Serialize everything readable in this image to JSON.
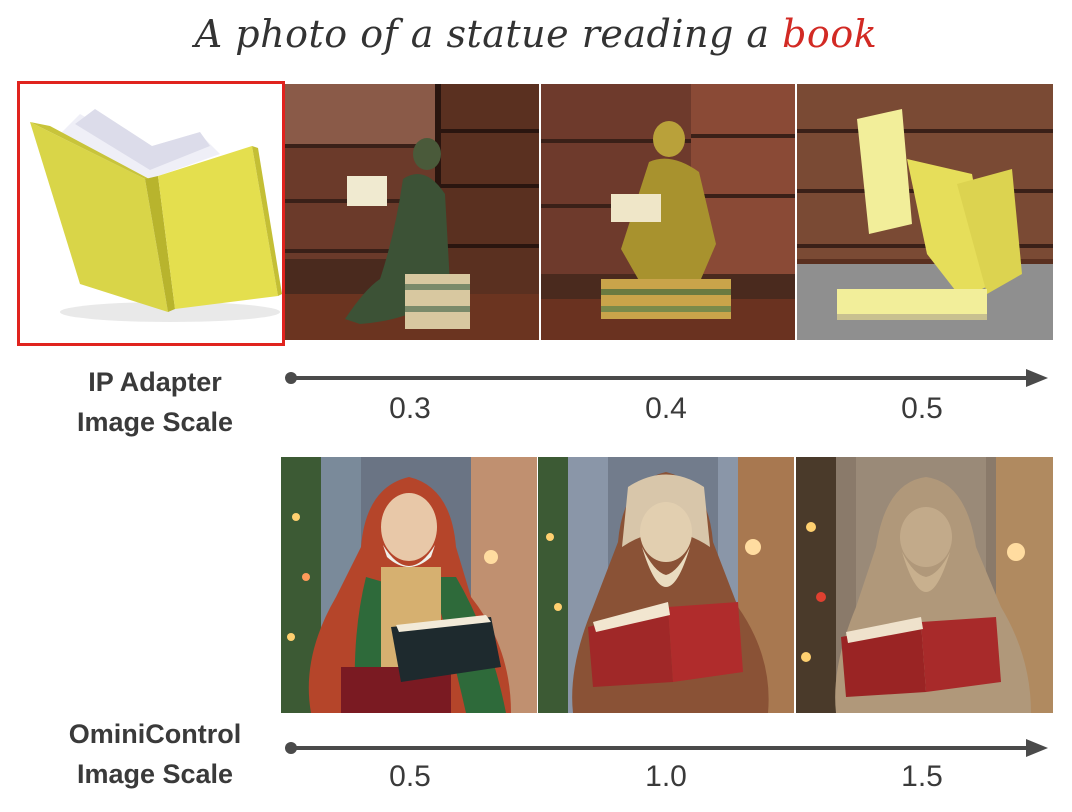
{
  "title": {
    "prefix": "A photo of a statue reading a ",
    "highlight": "book",
    "highlight_color": "#d22a24"
  },
  "reference": {
    "icon": "yellow-book-image",
    "frame_color": "#e0231e"
  },
  "rows": [
    {
      "label_line1": "IP Adapter",
      "label_line2": "Image Scale",
      "ticks": [
        "0.3",
        "0.4",
        "0.5"
      ],
      "panels": [
        "bronze-statue-reading-library",
        "gold-statue-reading-library",
        "yellow-book-figure-library"
      ]
    },
    {
      "label_line1": "OminiControl",
      "label_line2": "Image Scale",
      "ticks": [
        "0.5",
        "1.0",
        "1.5"
      ],
      "panels": [
        "painted-saint-statue-reading",
        "wood-statue-reading-red-book",
        "stone-statue-reading-red-book"
      ]
    }
  ]
}
